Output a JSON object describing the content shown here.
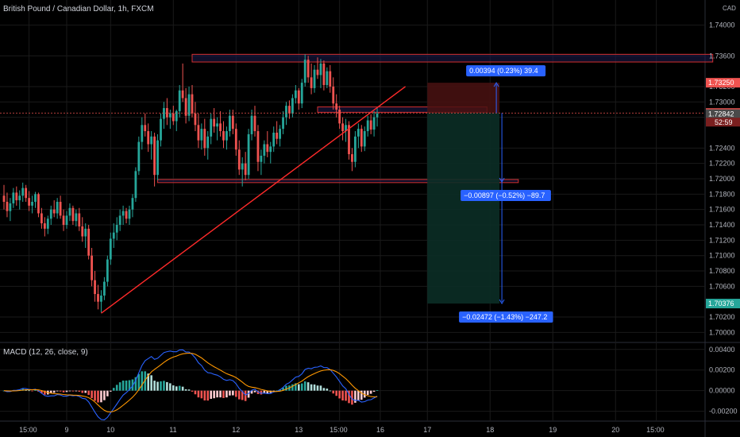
{
  "header": {
    "symbol_title": "British Pound / Canadian Dollar, 1h, FXCM",
    "currency_unit": "CAD"
  },
  "macd_title": "MACD (12, 26, close, 9)",
  "colors": {
    "bg": "#000000",
    "up": "#26a69a",
    "down": "#ef5350",
    "grid": "#1a1a1a",
    "trend": "#ff2a2a",
    "zone_border": "#d32f2f",
    "zone_fill": "#1a1a4a",
    "stop_fill": "#4a1212",
    "target_fill": "#0b2e26",
    "badge_blue": "#2962ff",
    "macd_line": "#2962ff",
    "signal_line": "#ff9800"
  },
  "chart_data": {
    "type": "candlestick",
    "price_axis": {
      "ylim": [
        1.6988,
        1.7412
      ],
      "ticks": [
        "1.74000",
        "1.73600",
        "1.73200",
        "1.73000",
        "1.72800",
        "1.72400",
        "1.72200",
        "1.72000",
        "1.71800",
        "1.71600",
        "1.71400",
        "1.71200",
        "1.71000",
        "1.70800",
        "1.70600",
        "1.70200",
        "1.70000"
      ]
    },
    "price_labels": [
      {
        "value": 1.7325,
        "text": "1.73250",
        "color": "#ef5350"
      },
      {
        "value": 1.72856,
        "text": "1.72856",
        "color": "#ef5350"
      },
      {
        "value": 1.72842,
        "text": "1.72842",
        "color": "#4a4a4a"
      },
      {
        "value": 1.70376,
        "text": "1.70376",
        "color": "#26a69a"
      }
    ],
    "countdown": "52:59",
    "time_axis": {
      "ticks": [
        {
          "label": "15:00",
          "bar": 8
        },
        {
          "label": "9",
          "bar": 20
        },
        {
          "label": "10",
          "bar": 34
        },
        {
          "label": "11",
          "bar": 54
        },
        {
          "label": "12",
          "bar": 74
        },
        {
          "label": "13",
          "bar": 94
        },
        {
          "label": "15:00",
          "bar": 107
        },
        {
          "label": "16",
          "bar": 120
        },
        {
          "label": "17",
          "bar": 135
        },
        {
          "label": "18",
          "bar": 155
        },
        {
          "label": "19",
          "bar": 175
        },
        {
          "label": "20",
          "bar": 195
        },
        {
          "label": "15:00",
          "bar": 208
        }
      ]
    },
    "candles": [
      {
        "o": 1.7178,
        "h": 1.7192,
        "l": 1.716,
        "c": 1.717
      },
      {
        "o": 1.717,
        "h": 1.7182,
        "l": 1.715,
        "c": 1.7158
      },
      {
        "o": 1.7158,
        "h": 1.7175,
        "l": 1.7145,
        "c": 1.7168
      },
      {
        "o": 1.7168,
        "h": 1.7188,
        "l": 1.7162,
        "c": 1.7182
      },
      {
        "o": 1.7182,
        "h": 1.719,
        "l": 1.7165,
        "c": 1.7172
      },
      {
        "o": 1.7172,
        "h": 1.7185,
        "l": 1.716,
        "c": 1.7178
      },
      {
        "o": 1.7178,
        "h": 1.7195,
        "l": 1.717,
        "c": 1.7188
      },
      {
        "o": 1.7188,
        "h": 1.7192,
        "l": 1.717,
        "c": 1.7175
      },
      {
        "o": 1.7175,
        "h": 1.7184,
        "l": 1.7158,
        "c": 1.7165
      },
      {
        "o": 1.7165,
        "h": 1.7178,
        "l": 1.7155,
        "c": 1.717
      },
      {
        "o": 1.717,
        "h": 1.7183,
        "l": 1.7162,
        "c": 1.718
      },
      {
        "o": 1.718,
        "h": 1.7182,
        "l": 1.715,
        "c": 1.7155
      },
      {
        "o": 1.7155,
        "h": 1.7162,
        "l": 1.7135,
        "c": 1.7142
      },
      {
        "o": 1.7142,
        "h": 1.715,
        "l": 1.7125,
        "c": 1.7135
      },
      {
        "o": 1.7135,
        "h": 1.7152,
        "l": 1.7128,
        "c": 1.7148
      },
      {
        "o": 1.7148,
        "h": 1.7165,
        "l": 1.714,
        "c": 1.716
      },
      {
        "o": 1.716,
        "h": 1.7172,
        "l": 1.715,
        "c": 1.7155
      },
      {
        "o": 1.7155,
        "h": 1.7175,
        "l": 1.7148,
        "c": 1.717
      },
      {
        "o": 1.717,
        "h": 1.7178,
        "l": 1.7148,
        "c": 1.7152
      },
      {
        "o": 1.7152,
        "h": 1.716,
        "l": 1.7132,
        "c": 1.714
      },
      {
        "o": 1.714,
        "h": 1.7158,
        "l": 1.7135,
        "c": 1.7152
      },
      {
        "o": 1.7152,
        "h": 1.7168,
        "l": 1.7145,
        "c": 1.7162
      },
      {
        "o": 1.7162,
        "h": 1.7165,
        "l": 1.714,
        "c": 1.7145
      },
      {
        "o": 1.7145,
        "h": 1.716,
        "l": 1.7138,
        "c": 1.7155
      },
      {
        "o": 1.7155,
        "h": 1.7162,
        "l": 1.7132,
        "c": 1.7138
      },
      {
        "o": 1.7138,
        "h": 1.715,
        "l": 1.7118,
        "c": 1.7125
      },
      {
        "o": 1.7125,
        "h": 1.7142,
        "l": 1.711,
        "c": 1.7135
      },
      {
        "o": 1.7135,
        "h": 1.714,
        "l": 1.7095,
        "c": 1.71
      },
      {
        "o": 1.71,
        "h": 1.711,
        "l": 1.706,
        "c": 1.7068
      },
      {
        "o": 1.7068,
        "h": 1.708,
        "l": 1.704,
        "c": 1.705
      },
      {
        "o": 1.705,
        "h": 1.7062,
        "l": 1.703,
        "c": 1.704
      },
      {
        "o": 1.704,
        "h": 1.7055,
        "l": 1.7026,
        "c": 1.7048
      },
      {
        "o": 1.7048,
        "h": 1.7072,
        "l": 1.7042,
        "c": 1.7066
      },
      {
        "o": 1.7066,
        "h": 1.71,
        "l": 1.706,
        "c": 1.7095
      },
      {
        "o": 1.7095,
        "h": 1.713,
        "l": 1.7088,
        "c": 1.7122
      },
      {
        "o": 1.7122,
        "h": 1.7142,
        "l": 1.711,
        "c": 1.713
      },
      {
        "o": 1.713,
        "h": 1.715,
        "l": 1.712,
        "c": 1.714
      },
      {
        "o": 1.714,
        "h": 1.716,
        "l": 1.7132,
        "c": 1.7152
      },
      {
        "o": 1.7152,
        "h": 1.7165,
        "l": 1.714,
        "c": 1.7158
      },
      {
        "o": 1.7158,
        "h": 1.7162,
        "l": 1.7142,
        "c": 1.7148
      },
      {
        "o": 1.7148,
        "h": 1.7165,
        "l": 1.714,
        "c": 1.716
      },
      {
        "o": 1.716,
        "h": 1.718,
        "l": 1.715,
        "c": 1.7175
      },
      {
        "o": 1.7175,
        "h": 1.7215,
        "l": 1.717,
        "c": 1.721
      },
      {
        "o": 1.721,
        "h": 1.7255,
        "l": 1.7205,
        "c": 1.7248
      },
      {
        "o": 1.7248,
        "h": 1.728,
        "l": 1.7238,
        "c": 1.727
      },
      {
        "o": 1.727,
        "h": 1.7285,
        "l": 1.7255,
        "c": 1.7262
      },
      {
        "o": 1.7262,
        "h": 1.7272,
        "l": 1.7235,
        "c": 1.7245
      },
      {
        "o": 1.7245,
        "h": 1.7262,
        "l": 1.7225,
        "c": 1.7255
      },
      {
        "o": 1.7255,
        "h": 1.726,
        "l": 1.719,
        "c": 1.7205
      },
      {
        "o": 1.7205,
        "h": 1.7258,
        "l": 1.7198,
        "c": 1.725
      },
      {
        "o": 1.725,
        "h": 1.7285,
        "l": 1.7242,
        "c": 1.7278
      },
      {
        "o": 1.7278,
        "h": 1.73,
        "l": 1.7265,
        "c": 1.7292
      },
      {
        "o": 1.7292,
        "h": 1.7305,
        "l": 1.727,
        "c": 1.728
      },
      {
        "o": 1.728,
        "h": 1.729,
        "l": 1.7265,
        "c": 1.7285
      },
      {
        "o": 1.7285,
        "h": 1.7295,
        "l": 1.727,
        "c": 1.7275
      },
      {
        "o": 1.7275,
        "h": 1.729,
        "l": 1.7262,
        "c": 1.7288
      },
      {
        "o": 1.7288,
        "h": 1.7322,
        "l": 1.728,
        "c": 1.7315
      },
      {
        "o": 1.7315,
        "h": 1.735,
        "l": 1.73,
        "c": 1.7305
      },
      {
        "o": 1.7305,
        "h": 1.7318,
        "l": 1.7272,
        "c": 1.7282
      },
      {
        "o": 1.7282,
        "h": 1.732,
        "l": 1.7275,
        "c": 1.731
      },
      {
        "o": 1.731,
        "h": 1.7322,
        "l": 1.728,
        "c": 1.7285
      },
      {
        "o": 1.7285,
        "h": 1.73,
        "l": 1.7262,
        "c": 1.727
      },
      {
        "o": 1.727,
        "h": 1.7285,
        "l": 1.724,
        "c": 1.725
      },
      {
        "o": 1.725,
        "h": 1.7272,
        "l": 1.7238,
        "c": 1.7265
      },
      {
        "o": 1.7265,
        "h": 1.7278,
        "l": 1.723,
        "c": 1.724
      },
      {
        "o": 1.724,
        "h": 1.7262,
        "l": 1.7225,
        "c": 1.7255
      },
      {
        "o": 1.7255,
        "h": 1.7285,
        "l": 1.7245,
        "c": 1.7278
      },
      {
        "o": 1.7278,
        "h": 1.7292,
        "l": 1.726,
        "c": 1.7268
      },
      {
        "o": 1.7268,
        "h": 1.728,
        "l": 1.725,
        "c": 1.7272
      },
      {
        "o": 1.7272,
        "h": 1.7288,
        "l": 1.7255,
        "c": 1.7262
      },
      {
        "o": 1.7262,
        "h": 1.7275,
        "l": 1.724,
        "c": 1.725
      },
      {
        "o": 1.725,
        "h": 1.7268,
        "l": 1.7238,
        "c": 1.7262
      },
      {
        "o": 1.7262,
        "h": 1.729,
        "l": 1.7255,
        "c": 1.7282
      },
      {
        "o": 1.7282,
        "h": 1.729,
        "l": 1.7258,
        "c": 1.7265
      },
      {
        "o": 1.7265,
        "h": 1.7272,
        "l": 1.723,
        "c": 1.7238
      },
      {
        "o": 1.7238,
        "h": 1.725,
        "l": 1.7205,
        "c": 1.7212
      },
      {
        "o": 1.7212,
        "h": 1.7228,
        "l": 1.719,
        "c": 1.722
      },
      {
        "o": 1.722,
        "h": 1.7235,
        "l": 1.7198,
        "c": 1.7205
      },
      {
        "o": 1.7205,
        "h": 1.7265,
        "l": 1.72,
        "c": 1.7258
      },
      {
        "o": 1.7258,
        "h": 1.729,
        "l": 1.725,
        "c": 1.7282
      },
      {
        "o": 1.7282,
        "h": 1.7295,
        "l": 1.7255,
        "c": 1.7262
      },
      {
        "o": 1.7262,
        "h": 1.727,
        "l": 1.721,
        "c": 1.7222
      },
      {
        "o": 1.7222,
        "h": 1.7238,
        "l": 1.7205,
        "c": 1.723
      },
      {
        "o": 1.723,
        "h": 1.725,
        "l": 1.722,
        "c": 1.7245
      },
      {
        "o": 1.7245,
        "h": 1.7262,
        "l": 1.7228,
        "c": 1.7235
      },
      {
        "o": 1.7235,
        "h": 1.7248,
        "l": 1.722,
        "c": 1.7242
      },
      {
        "o": 1.7242,
        "h": 1.7268,
        "l": 1.7235,
        "c": 1.726
      },
      {
        "o": 1.726,
        "h": 1.7275,
        "l": 1.7245,
        "c": 1.7252
      },
      {
        "o": 1.7252,
        "h": 1.727,
        "l": 1.7242,
        "c": 1.7265
      },
      {
        "o": 1.7265,
        "h": 1.7288,
        "l": 1.7258,
        "c": 1.728
      },
      {
        "o": 1.728,
        "h": 1.73,
        "l": 1.727,
        "c": 1.7295
      },
      {
        "o": 1.7295,
        "h": 1.7302,
        "l": 1.7278,
        "c": 1.7285
      },
      {
        "o": 1.7285,
        "h": 1.731,
        "l": 1.728,
        "c": 1.7305
      },
      {
        "o": 1.7305,
        "h": 1.7322,
        "l": 1.7298,
        "c": 1.7315
      },
      {
        "o": 1.7315,
        "h": 1.7318,
        "l": 1.729,
        "c": 1.7298
      },
      {
        "o": 1.7298,
        "h": 1.733,
        "l": 1.7292,
        "c": 1.7325
      },
      {
        "o": 1.7325,
        "h": 1.7362,
        "l": 1.732,
        "c": 1.7355
      },
      {
        "o": 1.7355,
        "h": 1.736,
        "l": 1.7325,
        "c": 1.7332
      },
      {
        "o": 1.7332,
        "h": 1.735,
        "l": 1.731,
        "c": 1.7318
      },
      {
        "o": 1.7318,
        "h": 1.7348,
        "l": 1.7312,
        "c": 1.7342
      },
      {
        "o": 1.7342,
        "h": 1.7358,
        "l": 1.733,
        "c": 1.7335
      },
      {
        "o": 1.7335,
        "h": 1.7356,
        "l": 1.7318,
        "c": 1.735
      },
      {
        "o": 1.735,
        "h": 1.7354,
        "l": 1.7315,
        "c": 1.7322
      },
      {
        "o": 1.7322,
        "h": 1.7345,
        "l": 1.7318,
        "c": 1.734
      },
      {
        "o": 1.734,
        "h": 1.7348,
        "l": 1.7312,
        "c": 1.732
      },
      {
        "o": 1.732,
        "h": 1.7332,
        "l": 1.729,
        "c": 1.7298
      },
      {
        "o": 1.7298,
        "h": 1.731,
        "l": 1.728,
        "c": 1.729
      },
      {
        "o": 1.729,
        "h": 1.7295,
        "l": 1.7265,
        "c": 1.7272
      },
      {
        "o": 1.7272,
        "h": 1.728,
        "l": 1.725,
        "c": 1.7262
      },
      {
        "o": 1.7262,
        "h": 1.7278,
        "l": 1.7248,
        "c": 1.727
      },
      {
        "o": 1.727,
        "h": 1.7275,
        "l": 1.7225,
        "c": 1.7232
      },
      {
        "o": 1.7232,
        "h": 1.724,
        "l": 1.721,
        "c": 1.7222
      },
      {
        "o": 1.7222,
        "h": 1.7262,
        "l": 1.7215,
        "c": 1.7255
      },
      {
        "o": 1.7255,
        "h": 1.7272,
        "l": 1.724,
        "c": 1.7265
      },
      {
        "o": 1.7265,
        "h": 1.727,
        "l": 1.7235,
        "c": 1.7242
      },
      {
        "o": 1.7242,
        "h": 1.7268,
        "l": 1.7236,
        "c": 1.7262
      },
      {
        "o": 1.7262,
        "h": 1.7282,
        "l": 1.7255,
        "c": 1.7276
      },
      {
        "o": 1.7276,
        "h": 1.7284,
        "l": 1.7258,
        "c": 1.7264
      },
      {
        "o": 1.7264,
        "h": 1.7288,
        "l": 1.7255,
        "c": 1.728
      },
      {
        "o": 1.728,
        "h": 1.7292,
        "l": 1.7268,
        "c": 1.7285
      }
    ],
    "zones": [
      {
        "name": "resistance",
        "y_top": 1.7362,
        "y_bottom": 1.7352,
        "x_from_bar": 60,
        "x_to_bar": 226
      },
      {
        "name": "support",
        "y_top": 1.7199,
        "y_bottom": 1.7195,
        "x_from_bar": 49,
        "x_to_bar": 164
      },
      {
        "name": "entry",
        "y_top": 1.72935,
        "y_bottom": 1.72865,
        "x_from_bar": 100,
        "x_to_bar": 154
      }
    ],
    "trendline": {
      "x1_bar": 31,
      "y1": 1.7025,
      "x2_bar": 128,
      "y2": 1.732
    },
    "short_position": {
      "entry": 1.72856,
      "stop": 1.7325,
      "target": 1.70376,
      "from_bar": 135,
      "to_bar": 158,
      "intermediate": 1.71959
    },
    "measures": [
      {
        "text": "0.00394 (0.23%) 39.4",
        "value": 1.7325
      },
      {
        "text": "−0.00897 (−0.52%) −89.7",
        "value": 1.71959
      },
      {
        "text": "−0.02472 (−1.43%) −247.2",
        "value": 1.70376
      }
    ],
    "macd_axis": {
      "ylim": [
        -0.0028,
        0.0046
      ],
      "ticks": [
        "0.00400",
        "0.00200",
        "0.00000",
        "-0.00200"
      ]
    }
  }
}
